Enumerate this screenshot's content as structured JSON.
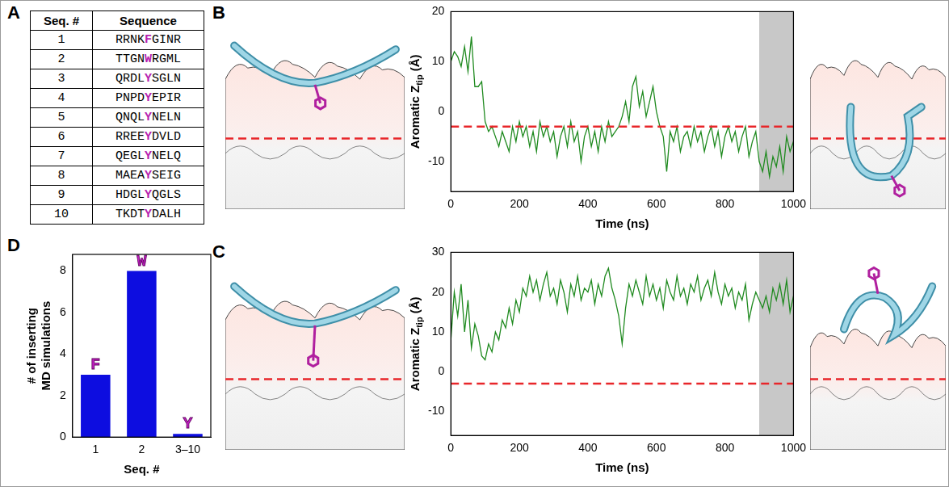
{
  "table": {
    "panel": "A",
    "header": [
      "Seq. #",
      "Sequence"
    ],
    "aromatic_color": "#b81fb0",
    "rows": [
      {
        "seq": "1",
        "before": "RRNK",
        "aromatic": "F",
        "after": "GINR"
      },
      {
        "seq": "2",
        "before": "TTGN",
        "aromatic": "W",
        "after": "RGML"
      },
      {
        "seq": "3",
        "before": "QRDL",
        "aromatic": "Y",
        "after": "SGLN"
      },
      {
        "seq": "4",
        "before": "PNPD",
        "aromatic": "Y",
        "after": "EPIR"
      },
      {
        "seq": "5",
        "before": "QNQL",
        "aromatic": "Y",
        "after": "NELN"
      },
      {
        "seq": "6",
        "before": "RREE",
        "aromatic": "Y",
        "after": "DVLD"
      },
      {
        "seq": "7",
        "before": "QEGL",
        "aromatic": "Y",
        "after": "NELQ"
      },
      {
        "seq": "8",
        "before": "MAEA",
        "aromatic": "Y",
        "after": "SEIG"
      },
      {
        "seq": "9",
        "before": "HDGL",
        "aromatic": "Y",
        "after": "QGLS"
      },
      {
        "seq": "10",
        "before": "TKDT",
        "aromatic": "Y",
        "after": "DALH"
      }
    ]
  },
  "chart_data": [
    {
      "panel": "B",
      "type": "line",
      "color": "#1f8a1f",
      "grid": false,
      "x_label": "Time (ns)",
      "y_label": {
        "text": "Aromatic Z",
        "subscript": "tip",
        "after": " (Å)"
      },
      "xlim": [
        0,
        1000
      ],
      "xticks": [
        0,
        200,
        400,
        600,
        800,
        1000
      ],
      "ylim": [
        -16,
        20
      ],
      "yticks": [
        -10,
        0,
        10,
        20
      ],
      "reference_line": {
        "value": -3,
        "color": "#e8262a",
        "line_style": "dashed"
      },
      "shaded_region": {
        "range": [
          900,
          1000
        ],
        "color": "#c8c8c8"
      },
      "x": [
        0,
        10,
        20,
        30,
        40,
        50,
        60,
        70,
        80,
        90,
        100,
        110,
        120,
        130,
        140,
        150,
        160,
        170,
        180,
        190,
        200,
        210,
        220,
        230,
        240,
        250,
        260,
        270,
        280,
        290,
        300,
        310,
        320,
        330,
        340,
        350,
        360,
        370,
        380,
        390,
        400,
        410,
        420,
        430,
        440,
        450,
        460,
        470,
        480,
        490,
        500,
        510,
        520,
        530,
        540,
        550,
        560,
        570,
        580,
        590,
        600,
        610,
        620,
        630,
        640,
        650,
        660,
        670,
        680,
        690,
        700,
        710,
        720,
        730,
        740,
        750,
        760,
        770,
        780,
        790,
        800,
        810,
        820,
        830,
        840,
        850,
        860,
        870,
        880,
        890,
        900,
        910,
        920,
        930,
        940,
        950,
        960,
        970,
        980,
        990,
        1000
      ],
      "values": [
        10,
        12,
        11,
        9,
        13,
        8,
        15,
        5,
        5,
        6,
        -2,
        -4,
        -3,
        -5,
        -7,
        -4,
        -6,
        -8,
        -3,
        -6,
        -2,
        -5,
        -3,
        -7,
        -4,
        -8,
        -2,
        -5,
        -3,
        -6,
        -4,
        -9,
        -5,
        -3,
        -7,
        -2,
        -6,
        -4,
        -10,
        -5,
        -3,
        -7,
        -4,
        -8,
        -3,
        -6,
        -2,
        -5,
        -4,
        -3,
        -1,
        2,
        -2,
        5,
        7,
        1,
        4,
        -1,
        2,
        5,
        0,
        -3,
        -5,
        -12,
        -4,
        -6,
        -3,
        -8,
        -5,
        -4,
        -7,
        -3,
        -6,
        -4,
        -8,
        -5,
        -3,
        -7,
        -4,
        -9,
        -5,
        -3,
        -6,
        -4,
        -8,
        -5,
        -3,
        -9,
        -6,
        -4,
        -10,
        -12,
        -8,
        -13,
        -9,
        -11,
        -7,
        -12,
        -5,
        -8,
        -6
      ]
    },
    {
      "panel": "C",
      "type": "line",
      "color": "#1f8a1f",
      "grid": false,
      "x_label": "Time (ns)",
      "y_label": {
        "text": "Aromatic Z",
        "subscript": "tip",
        "after": " (Å)"
      },
      "xlim": [
        0,
        1000
      ],
      "xticks": [
        0,
        200,
        400,
        600,
        800,
        1000
      ],
      "ylim": [
        -16,
        30
      ],
      "yticks": [
        -10,
        0,
        10,
        20,
        30
      ],
      "reference_line": {
        "value": -3,
        "color": "#e8262a",
        "line_style": "dashed"
      },
      "shaded_region": {
        "range": [
          900,
          1000
        ],
        "color": "#c8c8c8"
      },
      "x": [
        0,
        10,
        20,
        30,
        40,
        50,
        60,
        70,
        80,
        90,
        100,
        110,
        120,
        130,
        140,
        150,
        160,
        170,
        180,
        190,
        200,
        210,
        220,
        230,
        240,
        250,
        260,
        270,
        280,
        290,
        300,
        310,
        320,
        330,
        340,
        350,
        360,
        370,
        380,
        390,
        400,
        410,
        420,
        430,
        440,
        450,
        460,
        470,
        480,
        490,
        500,
        510,
        520,
        530,
        540,
        550,
        560,
        570,
        580,
        590,
        600,
        610,
        620,
        630,
        640,
        650,
        660,
        670,
        680,
        690,
        700,
        710,
        720,
        730,
        740,
        750,
        760,
        770,
        780,
        790,
        800,
        810,
        820,
        830,
        840,
        850,
        860,
        870,
        880,
        890,
        900,
        910,
        920,
        930,
        940,
        950,
        960,
        970,
        980,
        990,
        1000
      ],
      "values": [
        8,
        20,
        14,
        22,
        10,
        18,
        6,
        12,
        9,
        4,
        3,
        7,
        5,
        10,
        8,
        13,
        11,
        16,
        12,
        18,
        15,
        21,
        19,
        24,
        20,
        23,
        18,
        22,
        25,
        19,
        21,
        17,
        23,
        20,
        15,
        22,
        19,
        24,
        18,
        21,
        20,
        23,
        17,
        22,
        19,
        24,
        26,
        21,
        18,
        14,
        7,
        16,
        22,
        19,
        23,
        20,
        17,
        24,
        19,
        22,
        18,
        21,
        16,
        23,
        20,
        18,
        24,
        19,
        21,
        17,
        22,
        20,
        24,
        18,
        21,
        23,
        19,
        25,
        20,
        17,
        22,
        19,
        21,
        16,
        20,
        18,
        22,
        13,
        17,
        20,
        18,
        16,
        19,
        15,
        21,
        18,
        22,
        17,
        23,
        15,
        19
      ]
    },
    {
      "panel": "D",
      "type": "bar",
      "color": "#0d0de0",
      "grid": false,
      "categories": [
        "1",
        "2",
        "3–10"
      ],
      "values": [
        3,
        8,
        0.15
      ],
      "bar_letters": [
        "F",
        "W",
        "Y"
      ],
      "letter_color": "#c020c0",
      "x_label": "Seq. #",
      "y_label": "# of inserting MD simulations",
      "ylim": [
        0,
        8.8
      ],
      "yticks": [
        0,
        2,
        4,
        6,
        8
      ]
    }
  ]
}
